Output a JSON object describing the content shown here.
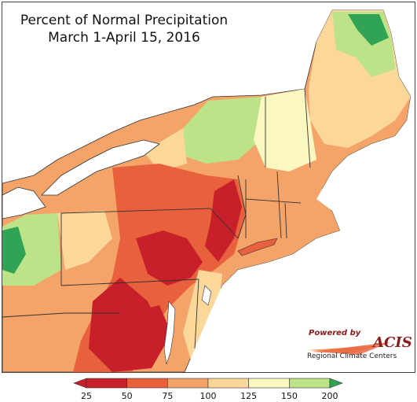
{
  "title": {
    "line1": "Percent of Normal Precipitation",
    "line2": "March 1-April 15, 2016"
  },
  "branding": {
    "powered_by": "Powered by",
    "name": "ACIS",
    "subtitle": "Regional Climate Centers"
  },
  "legend": {
    "ticks": [
      "25",
      "50",
      "75",
      "100",
      "125",
      "150",
      "200"
    ],
    "colors": [
      "#c8202a",
      "#e8603c",
      "#f4a468",
      "#fbd79a",
      "#fbf7c0",
      "#bde389",
      "#31a354"
    ],
    "below_color": "#c8202a",
    "above_color": "#31a354"
  },
  "colors": {
    "water": "#ffffff",
    "boundary": "#333333",
    "county_line": "#888888"
  }
}
